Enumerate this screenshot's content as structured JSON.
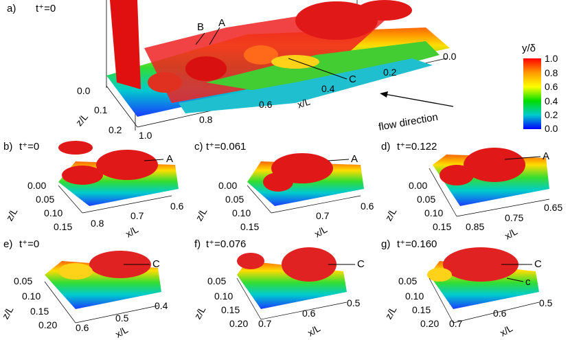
{
  "panels": {
    "a": {
      "label": "a)",
      "time": "t⁺=0"
    },
    "b": {
      "label": "b)",
      "time": "t⁺=0"
    },
    "c": {
      "label": "c)",
      "time": "t⁺=0.061"
    },
    "d": {
      "label": "d)",
      "time": "t⁺=0.122"
    },
    "e": {
      "label": "e)",
      "time": "t⁺=0"
    },
    "f": {
      "label": "f)",
      "time": "t⁺=0.076"
    },
    "g": {
      "label": "g)",
      "time": "t⁺=0.160"
    }
  },
  "annotations": {
    "A": "A",
    "B": "B",
    "C": "C",
    "c_small": "c"
  },
  "axes": {
    "z": "z/L",
    "x": "x/L"
  },
  "ticks": {
    "a_z": [
      "0.0",
      "0.1",
      "0.2"
    ],
    "a_x": [
      "1.0",
      "0.8",
      "0.6",
      "0.4",
      "0.2",
      "0.0"
    ],
    "b_z": [
      "0.00",
      "0.05",
      "0.10",
      "0.15"
    ],
    "b_x": [
      "0.8",
      "0.7",
      "0.6"
    ],
    "c_z": [
      "0.00",
      "0.05",
      "0.10",
      "0.15"
    ],
    "c_x": [
      "0.7",
      "0.6"
    ],
    "d_z": [
      "0.00",
      "0.05",
      "0.10",
      "0.15"
    ],
    "d_x": [
      "0.85",
      "0.75",
      "0.65"
    ],
    "e_z": [
      "0.05",
      "0.10",
      "0.15",
      "0.20"
    ],
    "e_x": [
      "0.6",
      "0.5",
      "0.4"
    ],
    "f_z": [
      "0.05",
      "0.10",
      "0.15",
      "0.20"
    ],
    "f_x": [
      "0.7",
      "0.6",
      "0.5"
    ],
    "g_z": [
      "0.05",
      "0.10",
      "0.15",
      "0.20"
    ],
    "g_x": [
      "0.7",
      "0.6",
      "0.5"
    ]
  },
  "colorbar": {
    "title": "y/δ",
    "ticks": [
      "1.0",
      "0.8",
      "0.6",
      "0.4",
      "0.2",
      "0.0"
    ],
    "colors": [
      "#ff0000",
      "#ff9900",
      "#ffff00",
      "#00dd00",
      "#00cccc",
      "#0000ff"
    ]
  },
  "flow": {
    "label": "flow direction"
  }
}
